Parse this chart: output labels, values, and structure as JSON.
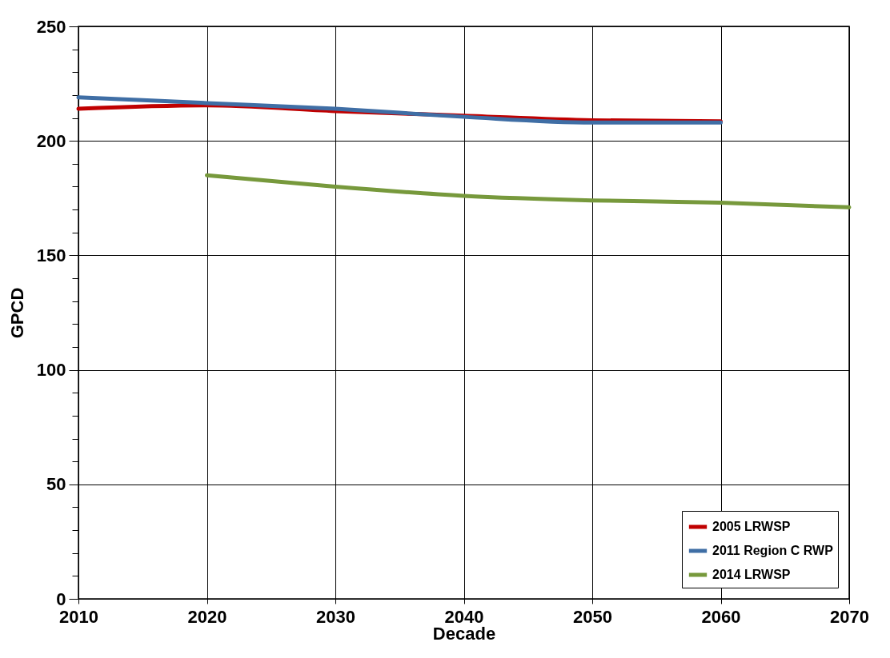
{
  "chart_data": {
    "type": "line",
    "xlabel": "Decade",
    "ylabel": "GPCD",
    "x": [
      2010,
      2020,
      2030,
      2040,
      2050,
      2060
    ],
    "series": [
      {
        "name": "2005 LRWSP",
        "color": "#c00000",
        "values": [
          214,
          215.5,
          213,
          211,
          209,
          208.5
        ]
      },
      {
        "name": "2011 Region C RWP",
        "color": "#3f6ea5",
        "values": [
          219,
          216.5,
          214,
          210.5,
          208,
          208
        ]
      },
      {
        "name": "2014 LRWSP",
        "color": "#77993c",
        "x": [
          2020,
          2030,
          2040,
          2050,
          2060,
          2070
        ],
        "values": [
          185,
          180,
          176,
          174,
          173,
          171
        ]
      }
    ],
    "xlim": [
      2010,
      2070
    ],
    "xticks": [
      2010,
      2020,
      2030,
      2040,
      2050,
      2060,
      2070
    ],
    "ylim": [
      0,
      250
    ],
    "yticks": [
      0,
      {
        "value": 10,
        "label": null
      },
      {
        "value": 20,
        "label": null
      },
      {
        "value": 30,
        "label": null
      },
      {
        "value": 40,
        "label": null
      },
      50,
      {
        "value": 60,
        "label": null
      },
      {
        "value": 70,
        "label": null
      },
      {
        "value": 80,
        "label": null
      },
      {
        "value": 90,
        "label": null
      },
      100,
      {
        "value": 110,
        "label": null
      },
      {
        "value": 120,
        "label": null
      },
      {
        "value": 130,
        "label": null
      },
      {
        "value": 140,
        "label": null
      },
      150,
      {
        "value": 160,
        "label": null
      },
      {
        "value": 170,
        "label": null
      },
      {
        "value": 180,
        "label": null
      },
      {
        "value": 190,
        "label": null
      },
      200,
      {
        "value": 210,
        "label": null
      },
      {
        "value": 220,
        "label": null
      },
      {
        "value": 230,
        "label": null
      },
      {
        "value": 240,
        "label": null
      },
      250
    ],
    "grid": true,
    "legend": "bottom right",
    "marker": "none",
    "line_style": "solid"
  }
}
